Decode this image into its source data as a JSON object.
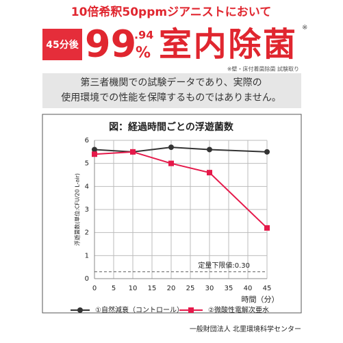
{
  "header": {
    "headline": "10倍希釈50ppmジアニストにおいて",
    "badge": "45分後",
    "big_number": "99",
    "big_decimal": ".94",
    "big_percent": "%",
    "big_text": "室内除菌",
    "asterisk": "※",
    "note": "※壁・床付着菌除菌 試験取り"
  },
  "disclaimer": {
    "lines": [
      "第三者機関での試験データであり、実際の",
      "使用環境での性能を保障するものではありません。"
    ]
  },
  "chart_data": {
    "type": "line",
    "title": "図：経過時間ごとの浮遊菌数",
    "x": [
      0,
      10,
      20,
      30,
      45
    ],
    "series": [
      {
        "name": "①自然減衰（コントロール）",
        "color": "#333333",
        "marker": "circle",
        "values": [
          5.6,
          5.5,
          5.7,
          5.6,
          5.5
        ]
      },
      {
        "name": "②微酸性電解次亜水",
        "color": "#e5194a",
        "marker": "square",
        "values": [
          5.4,
          5.5,
          5.0,
          4.6,
          2.2
        ]
      }
    ],
    "xlim": [
      0,
      45
    ],
    "xticks": [
      0,
      5,
      10,
      15,
      20,
      25,
      30,
      35,
      40,
      45
    ],
    "ylim": [
      0,
      6
    ],
    "yticks": [
      0,
      1,
      2,
      3,
      4,
      5,
      6
    ],
    "x_label": "時間（分）",
    "y_label": "浮遊菌数(単位:CFU/20 L-air)",
    "limit_line": {
      "value": 0.3,
      "label": "定量下限値:0.30"
    },
    "grid": true,
    "legend": "bottom"
  },
  "footer": "一般財団法人 北里環境科学センター"
}
